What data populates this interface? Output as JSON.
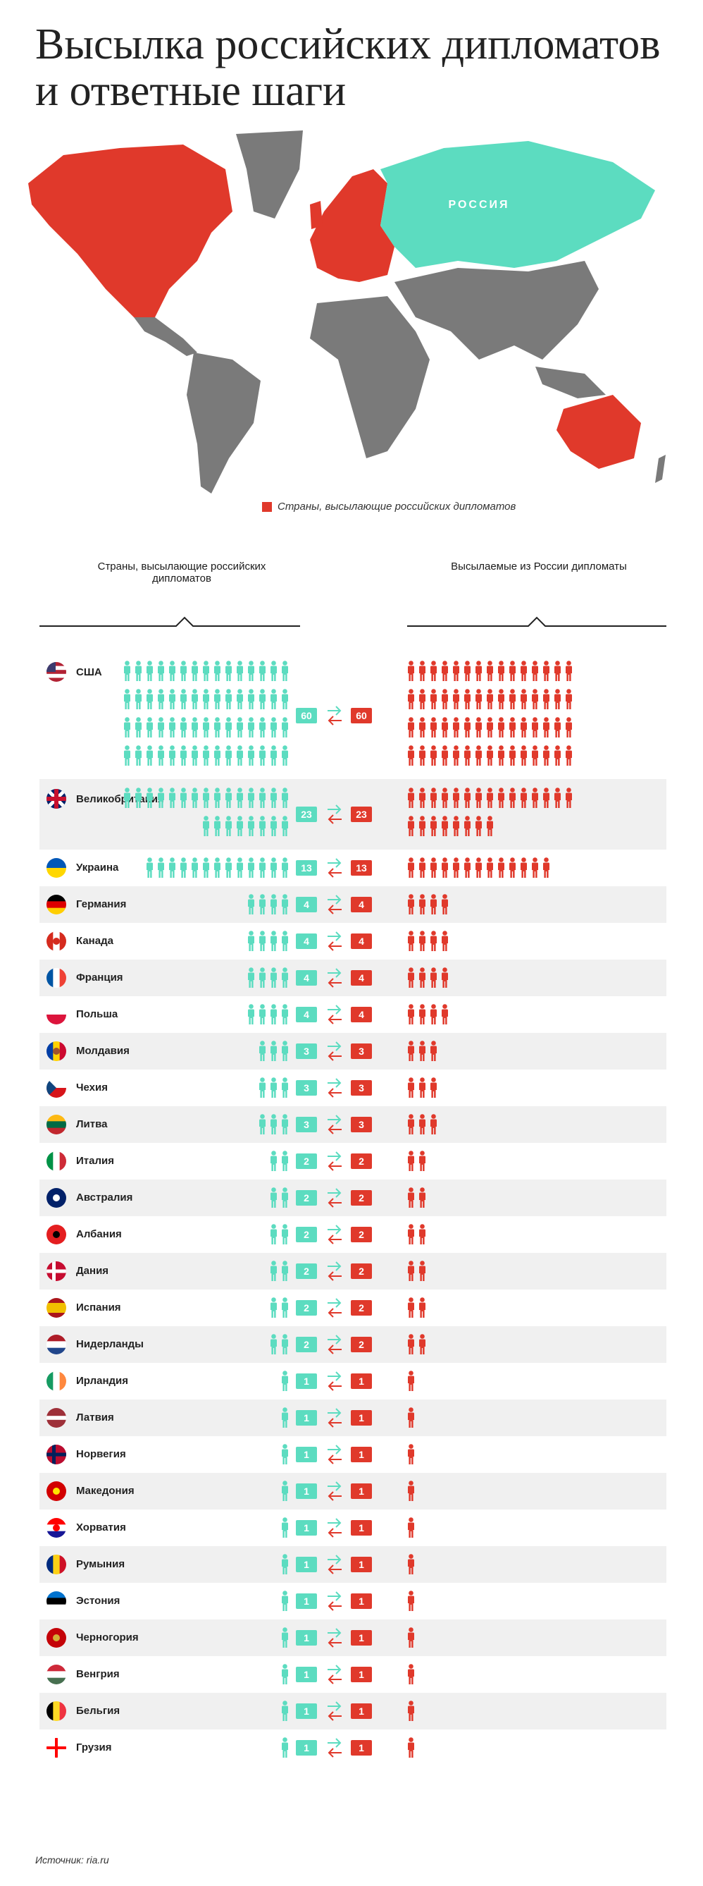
{
  "title": "Высылка российских дипломатов и ответные шаги",
  "map": {
    "russia_label": "РОССИЯ",
    "legend": "Страны, высылающие российских дипломатов",
    "colors": {
      "expelling": "#e0392b",
      "russia": "#5cdcc0",
      "other": "#7a7a7a"
    }
  },
  "headers": {
    "left": "Страны, высылающие российских дипломатов",
    "right": "Высылаемые из России дипломаты"
  },
  "source": "Источник: ria.ru",
  "chart_data": {
    "type": "bar",
    "title": "Высылка российских дипломатов и ответные шаги",
    "series": [
      {
        "name": "Страны, высылающие российских дипломатов",
        "color": "#5cdcc0",
        "values": [
          60,
          23,
          13,
          4,
          4,
          4,
          4,
          3,
          3,
          3,
          2,
          2,
          2,
          2,
          2,
          2,
          1,
          1,
          1,
          1,
          1,
          1,
          1,
          1,
          1,
          1,
          1
        ]
      },
      {
        "name": "Высылаемые из России дипломаты",
        "color": "#e0392b",
        "values": [
          60,
          23,
          13,
          4,
          4,
          4,
          4,
          3,
          3,
          3,
          2,
          2,
          2,
          2,
          2,
          2,
          1,
          1,
          1,
          1,
          1,
          1,
          1,
          1,
          1,
          1,
          1
        ]
      }
    ],
    "countries": [
      {
        "name": "США",
        "flag": "us",
        "expelled": 60,
        "response": 60
      },
      {
        "name": "Великобритания",
        "flag": "gb",
        "expelled": 23,
        "response": 23
      },
      {
        "name": "Украина",
        "flag": "ua",
        "expelled": 13,
        "response": 13
      },
      {
        "name": "Германия",
        "flag": "de",
        "expelled": 4,
        "response": 4
      },
      {
        "name": "Канада",
        "flag": "ca",
        "expelled": 4,
        "response": 4
      },
      {
        "name": "Франция",
        "flag": "fr",
        "expelled": 4,
        "response": 4
      },
      {
        "name": "Польша",
        "flag": "pl",
        "expelled": 4,
        "response": 4
      },
      {
        "name": "Молдавия",
        "flag": "md",
        "expelled": 3,
        "response": 3
      },
      {
        "name": "Чехия",
        "flag": "cz",
        "expelled": 3,
        "response": 3
      },
      {
        "name": "Литва",
        "flag": "lt",
        "expelled": 3,
        "response": 3
      },
      {
        "name": "Италия",
        "flag": "it",
        "expelled": 2,
        "response": 2
      },
      {
        "name": "Австралия",
        "flag": "au",
        "expelled": 2,
        "response": 2
      },
      {
        "name": "Албания",
        "flag": "al",
        "expelled": 2,
        "response": 2
      },
      {
        "name": "Дания",
        "flag": "dk",
        "expelled": 2,
        "response": 2
      },
      {
        "name": "Испания",
        "flag": "es",
        "expelled": 2,
        "response": 2
      },
      {
        "name": "Нидерланды",
        "flag": "nl",
        "expelled": 2,
        "response": 2
      },
      {
        "name": "Ирландия",
        "flag": "ie",
        "expelled": 1,
        "response": 1
      },
      {
        "name": "Латвия",
        "flag": "lv",
        "expelled": 1,
        "response": 1
      },
      {
        "name": "Норвегия",
        "flag": "no",
        "expelled": 1,
        "response": 1
      },
      {
        "name": "Македония",
        "flag": "mk",
        "expelled": 1,
        "response": 1
      },
      {
        "name": "Хорватия",
        "flag": "hr",
        "expelled": 1,
        "response": 1
      },
      {
        "name": "Румыния",
        "flag": "ro",
        "expelled": 1,
        "response": 1
      },
      {
        "name": "Эстония",
        "flag": "ee",
        "expelled": 1,
        "response": 1
      },
      {
        "name": "Черногория",
        "flag": "me",
        "expelled": 1,
        "response": 1
      },
      {
        "name": "Венгрия",
        "flag": "hu",
        "expelled": 1,
        "response": 1
      },
      {
        "name": "Бельгия",
        "flag": "be",
        "expelled": 1,
        "response": 1
      },
      {
        "name": "Грузия",
        "flag": "ge",
        "expelled": 1,
        "response": 1
      }
    ]
  }
}
